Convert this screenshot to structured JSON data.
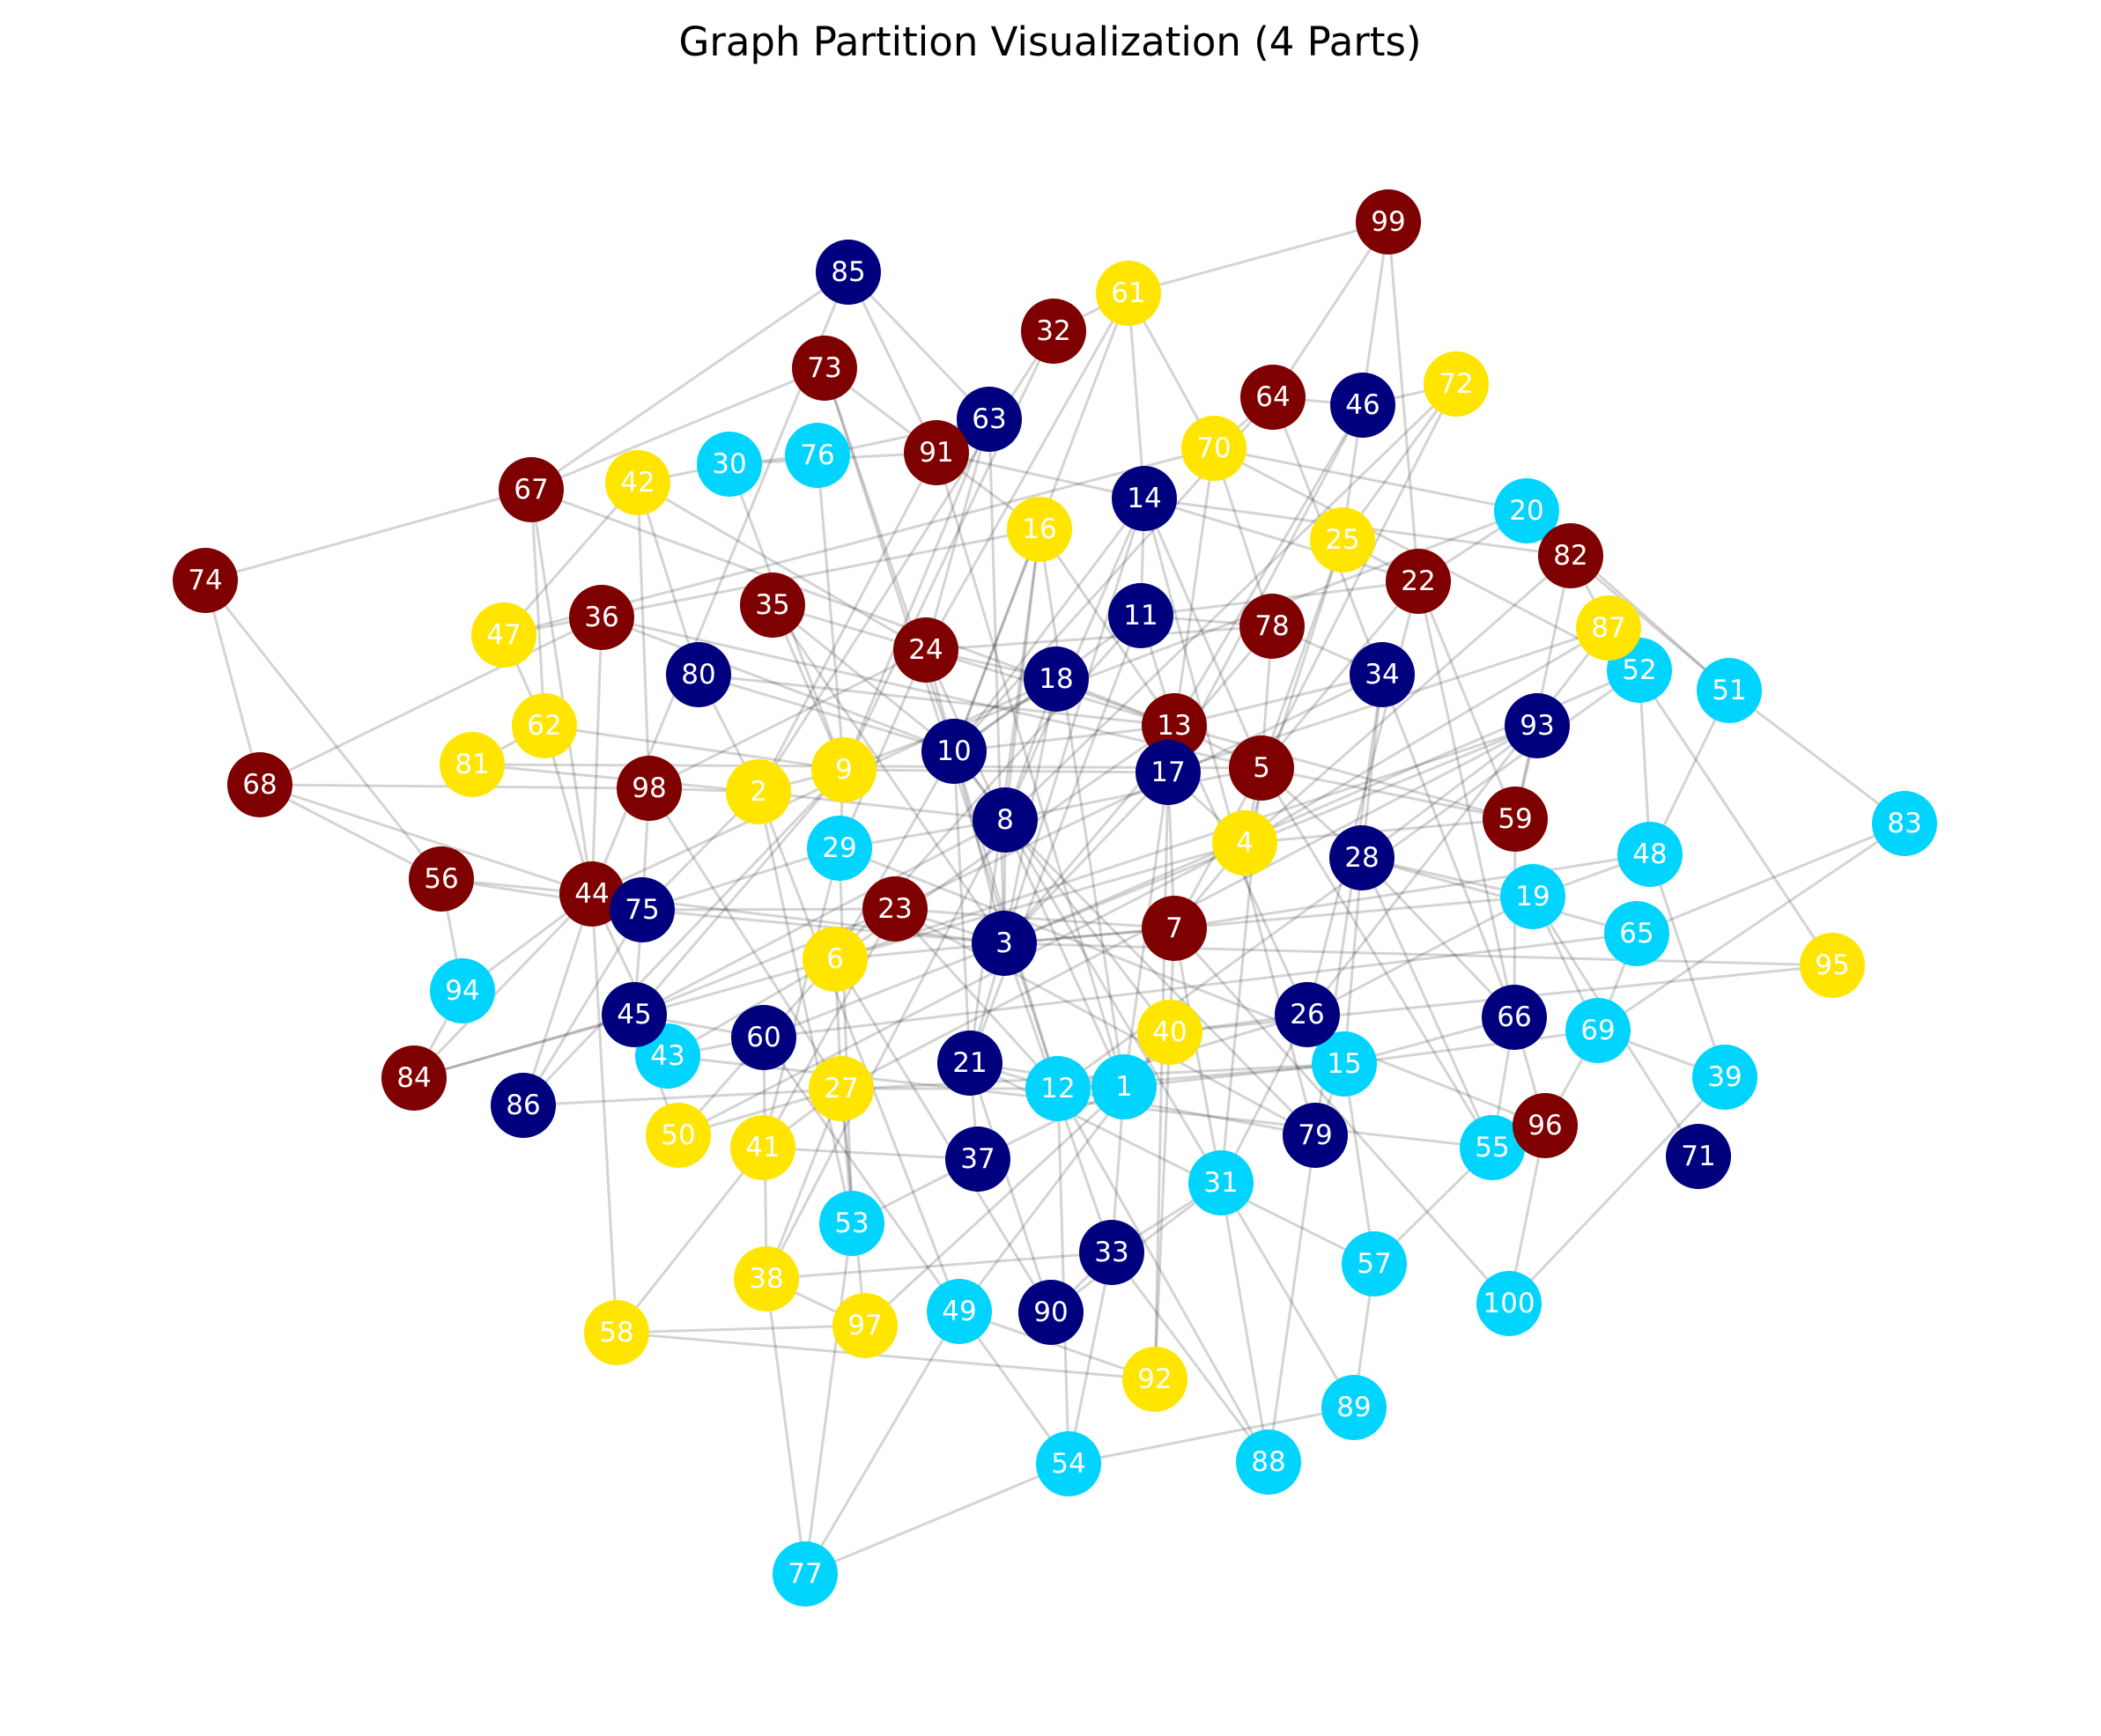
{
  "title": "Graph Partition Visualization (4 Parts)",
  "partition_colors": {
    "0": "#00007f",
    "1": "#00d4ff",
    "2": "#ffe500",
    "3": "#7f0000"
  },
  "nodes": [
    {
      "id": "1",
      "part": 1
    },
    {
      "id": "2",
      "part": 2
    },
    {
      "id": "3",
      "part": 0
    },
    {
      "id": "4",
      "part": 2
    },
    {
      "id": "5",
      "part": 3
    },
    {
      "id": "6",
      "part": 2
    },
    {
      "id": "7",
      "part": 3
    },
    {
      "id": "8",
      "part": 0
    },
    {
      "id": "9",
      "part": 2
    },
    {
      "id": "10",
      "part": 0
    },
    {
      "id": "11",
      "part": 0
    },
    {
      "id": "12",
      "part": 1
    },
    {
      "id": "13",
      "part": 3
    },
    {
      "id": "14",
      "part": 0
    },
    {
      "id": "15",
      "part": 1
    },
    {
      "id": "16",
      "part": 2
    },
    {
      "id": "17",
      "part": 0
    },
    {
      "id": "18",
      "part": 0
    },
    {
      "id": "19",
      "part": 1
    },
    {
      "id": "20",
      "part": 1
    },
    {
      "id": "21",
      "part": 0
    },
    {
      "id": "22",
      "part": 3
    },
    {
      "id": "23",
      "part": 3
    },
    {
      "id": "24",
      "part": 3
    },
    {
      "id": "25",
      "part": 2
    },
    {
      "id": "26",
      "part": 0
    },
    {
      "id": "27",
      "part": 2
    },
    {
      "id": "28",
      "part": 0
    },
    {
      "id": "29",
      "part": 1
    },
    {
      "id": "30",
      "part": 1
    },
    {
      "id": "31",
      "part": 1
    },
    {
      "id": "32",
      "part": 3
    },
    {
      "id": "33",
      "part": 0
    },
    {
      "id": "34",
      "part": 0
    },
    {
      "id": "35",
      "part": 3
    },
    {
      "id": "36",
      "part": 3
    },
    {
      "id": "37",
      "part": 0
    },
    {
      "id": "38",
      "part": 2
    },
    {
      "id": "39",
      "part": 1
    },
    {
      "id": "40",
      "part": 2
    },
    {
      "id": "41",
      "part": 2
    },
    {
      "id": "42",
      "part": 2
    },
    {
      "id": "43",
      "part": 1
    },
    {
      "id": "44",
      "part": 3
    },
    {
      "id": "45",
      "part": 0
    },
    {
      "id": "46",
      "part": 0
    },
    {
      "id": "47",
      "part": 2
    },
    {
      "id": "48",
      "part": 1
    },
    {
      "id": "49",
      "part": 1
    },
    {
      "id": "50",
      "part": 2
    },
    {
      "id": "51",
      "part": 1
    },
    {
      "id": "52",
      "part": 1
    },
    {
      "id": "53",
      "part": 1
    },
    {
      "id": "54",
      "part": 1
    },
    {
      "id": "55",
      "part": 1
    },
    {
      "id": "56",
      "part": 3
    },
    {
      "id": "57",
      "part": 1
    },
    {
      "id": "58",
      "part": 2
    },
    {
      "id": "59",
      "part": 3
    },
    {
      "id": "60",
      "part": 0
    },
    {
      "id": "61",
      "part": 2
    },
    {
      "id": "62",
      "part": 2
    },
    {
      "id": "63",
      "part": 0
    },
    {
      "id": "64",
      "part": 3
    },
    {
      "id": "65",
      "part": 1
    },
    {
      "id": "66",
      "part": 0
    },
    {
      "id": "67",
      "part": 3
    },
    {
      "id": "68",
      "part": 3
    },
    {
      "id": "69",
      "part": 1
    },
    {
      "id": "70",
      "part": 2
    },
    {
      "id": "71",
      "part": 0
    },
    {
      "id": "72",
      "part": 2
    },
    {
      "id": "73",
      "part": 3
    },
    {
      "id": "74",
      "part": 3
    },
    {
      "id": "75",
      "part": 0
    },
    {
      "id": "76",
      "part": 1
    },
    {
      "id": "77",
      "part": 1
    },
    {
      "id": "78",
      "part": 3
    },
    {
      "id": "79",
      "part": 0
    },
    {
      "id": "80",
      "part": 0
    },
    {
      "id": "81",
      "part": 2
    },
    {
      "id": "82",
      "part": 3
    },
    {
      "id": "83",
      "part": 1
    },
    {
      "id": "84",
      "part": 3
    },
    {
      "id": "85",
      "part": 0
    },
    {
      "id": "86",
      "part": 0
    },
    {
      "id": "87",
      "part": 2
    },
    {
      "id": "88",
      "part": 1
    },
    {
      "id": "89",
      "part": 1
    },
    {
      "id": "90",
      "part": 0
    },
    {
      "id": "91",
      "part": 3
    },
    {
      "id": "92",
      "part": 2
    },
    {
      "id": "93",
      "part": 0
    },
    {
      "id": "94",
      "part": 1
    },
    {
      "id": "95",
      "part": 2
    },
    {
      "id": "96",
      "part": 3
    },
    {
      "id": "97",
      "part": 2
    },
    {
      "id": "98",
      "part": 3
    },
    {
      "id": "99",
      "part": 3
    },
    {
      "id": "100",
      "part": 1
    }
  ],
  "edges": [
    [
      "74",
      "67"
    ],
    [
      "74",
      "68"
    ],
    [
      "74",
      "56"
    ],
    [
      "67",
      "73"
    ],
    [
      "67",
      "85"
    ],
    [
      "67",
      "62"
    ],
    [
      "67",
      "44"
    ],
    [
      "68",
      "98"
    ],
    [
      "68",
      "75"
    ],
    [
      "68",
      "56"
    ],
    [
      "68",
      "36"
    ],
    [
      "56",
      "44"
    ],
    [
      "56",
      "94"
    ],
    [
      "56",
      "75"
    ],
    [
      "85",
      "63"
    ],
    [
      "85",
      "91"
    ],
    [
      "73",
      "10"
    ],
    [
      "73",
      "91"
    ],
    [
      "63",
      "24"
    ],
    [
      "63",
      "9"
    ],
    [
      "32",
      "61"
    ],
    [
      "32",
      "2"
    ],
    [
      "61",
      "99"
    ],
    [
      "61",
      "14"
    ],
    [
      "61",
      "70"
    ],
    [
      "61",
      "10"
    ],
    [
      "99",
      "64"
    ],
    [
      "99",
      "22"
    ],
    [
      "64",
      "46"
    ],
    [
      "64",
      "70"
    ],
    [
      "64",
      "66"
    ],
    [
      "46",
      "72"
    ],
    [
      "46",
      "17"
    ],
    [
      "72",
      "25"
    ],
    [
      "72",
      "5"
    ],
    [
      "30",
      "91"
    ],
    [
      "30",
      "9"
    ],
    [
      "30",
      "76"
    ],
    [
      "76",
      "63"
    ],
    [
      "76",
      "9"
    ],
    [
      "42",
      "30"
    ],
    [
      "42",
      "80"
    ],
    [
      "42",
      "98"
    ],
    [
      "42",
      "47"
    ],
    [
      "42",
      "24"
    ],
    [
      "47",
      "62"
    ],
    [
      "47",
      "70"
    ],
    [
      "36",
      "44"
    ],
    [
      "36",
      "10"
    ],
    [
      "35",
      "24"
    ],
    [
      "35",
      "9"
    ],
    [
      "35",
      "3"
    ],
    [
      "80",
      "10"
    ],
    [
      "80",
      "2"
    ],
    [
      "62",
      "81"
    ],
    [
      "62",
      "44"
    ],
    [
      "62",
      "9"
    ],
    [
      "81",
      "2"
    ],
    [
      "81",
      "5"
    ],
    [
      "98",
      "75"
    ],
    [
      "98",
      "2"
    ],
    [
      "98",
      "27"
    ],
    [
      "98",
      "24"
    ],
    [
      "24",
      "18"
    ],
    [
      "24",
      "1"
    ],
    [
      "24",
      "29"
    ],
    [
      "24",
      "13"
    ],
    [
      "91",
      "16"
    ],
    [
      "91",
      "1"
    ],
    [
      "91",
      "2"
    ],
    [
      "16",
      "21"
    ],
    [
      "16",
      "10"
    ],
    [
      "16",
      "13"
    ],
    [
      "16",
      "1"
    ],
    [
      "14",
      "11"
    ],
    [
      "14",
      "10"
    ],
    [
      "14",
      "5"
    ],
    [
      "14",
      "79"
    ],
    [
      "14",
      "8"
    ],
    [
      "11",
      "10"
    ],
    [
      "11",
      "22"
    ],
    [
      "11",
      "78"
    ],
    [
      "11",
      "6"
    ],
    [
      "11",
      "13"
    ],
    [
      "18",
      "8"
    ],
    [
      "18",
      "13"
    ],
    [
      "18",
      "44"
    ],
    [
      "18",
      "3"
    ],
    [
      "10",
      "8"
    ],
    [
      "10",
      "13"
    ],
    [
      "10",
      "3"
    ],
    [
      "10",
      "6"
    ],
    [
      "10",
      "12"
    ],
    [
      "10",
      "40"
    ],
    [
      "10",
      "21"
    ],
    [
      "13",
      "17"
    ],
    [
      "13",
      "5"
    ],
    [
      "13",
      "6"
    ],
    [
      "13",
      "26"
    ],
    [
      "17",
      "7"
    ],
    [
      "17",
      "3"
    ],
    [
      "17",
      "4"
    ],
    [
      "5",
      "4"
    ],
    [
      "5",
      "22"
    ],
    [
      "5",
      "59"
    ],
    [
      "5",
      "28"
    ],
    [
      "5",
      "8"
    ],
    [
      "5",
      "7"
    ],
    [
      "5",
      "31"
    ],
    [
      "5",
      "55"
    ],
    [
      "78",
      "70"
    ],
    [
      "78",
      "5"
    ],
    [
      "78",
      "3"
    ],
    [
      "70",
      "20"
    ],
    [
      "70",
      "1"
    ],
    [
      "70",
      "52"
    ],
    [
      "25",
      "5"
    ],
    [
      "25",
      "4"
    ],
    [
      "25",
      "22"
    ],
    [
      "22",
      "20"
    ],
    [
      "22",
      "66"
    ],
    [
      "22",
      "59"
    ],
    [
      "22",
      "14"
    ],
    [
      "20",
      "82"
    ],
    [
      "20",
      "51"
    ],
    [
      "20",
      "9"
    ],
    [
      "82",
      "87"
    ],
    [
      "82",
      "51"
    ],
    [
      "82",
      "59"
    ],
    [
      "82",
      "14"
    ],
    [
      "87",
      "52"
    ],
    [
      "87",
      "4"
    ],
    [
      "87",
      "95"
    ],
    [
      "87",
      "26"
    ],
    [
      "52",
      "12"
    ],
    [
      "52",
      "48"
    ],
    [
      "51",
      "83"
    ],
    [
      "51",
      "48"
    ],
    [
      "34",
      "78"
    ],
    [
      "34",
      "79"
    ],
    [
      "34",
      "23"
    ],
    [
      "34",
      "28"
    ],
    [
      "93",
      "3"
    ],
    [
      "93",
      "28"
    ],
    [
      "93",
      "27"
    ],
    [
      "93",
      "59"
    ],
    [
      "59",
      "66"
    ],
    [
      "59",
      "4"
    ],
    [
      "28",
      "55"
    ],
    [
      "28",
      "66"
    ],
    [
      "28",
      "15"
    ],
    [
      "28",
      "19"
    ],
    [
      "19",
      "26"
    ],
    [
      "19",
      "69"
    ],
    [
      "19",
      "71"
    ],
    [
      "48",
      "19"
    ],
    [
      "48",
      "39"
    ],
    [
      "48",
      "7"
    ],
    [
      "83",
      "65"
    ],
    [
      "83",
      "69"
    ],
    [
      "65",
      "69"
    ],
    [
      "65",
      "60"
    ],
    [
      "69",
      "96"
    ],
    [
      "69",
      "15"
    ],
    [
      "69",
      "39"
    ],
    [
      "95",
      "3"
    ],
    [
      "95",
      "40"
    ],
    [
      "66",
      "96"
    ],
    [
      "66",
      "55"
    ],
    [
      "66",
      "15"
    ],
    [
      "96",
      "100"
    ],
    [
      "96",
      "29"
    ],
    [
      "55",
      "43"
    ],
    [
      "55",
      "57"
    ],
    [
      "15",
      "57"
    ],
    [
      "15",
      "1"
    ],
    [
      "15",
      "12"
    ],
    [
      "15",
      "79"
    ],
    [
      "26",
      "31"
    ],
    [
      "26",
      "12"
    ],
    [
      "26",
      "40"
    ],
    [
      "79",
      "12"
    ],
    [
      "79",
      "88"
    ],
    [
      "79",
      "8"
    ],
    [
      "79",
      "23"
    ],
    [
      "31",
      "89"
    ],
    [
      "31",
      "88"
    ],
    [
      "31",
      "33"
    ],
    [
      "31",
      "8"
    ],
    [
      "57",
      "89"
    ],
    [
      "57",
      "21"
    ],
    [
      "100",
      "39"
    ],
    [
      "100",
      "7"
    ],
    [
      "7",
      "40"
    ],
    [
      "7",
      "3"
    ],
    [
      "7",
      "23"
    ],
    [
      "7",
      "4"
    ],
    [
      "7",
      "31"
    ],
    [
      "40",
      "92"
    ],
    [
      "40",
      "49"
    ],
    [
      "40",
      "1"
    ],
    [
      "1",
      "12"
    ],
    [
      "1",
      "37"
    ],
    [
      "1",
      "33"
    ],
    [
      "1",
      "21"
    ],
    [
      "1",
      "97"
    ],
    [
      "12",
      "54"
    ],
    [
      "12",
      "88"
    ],
    [
      "12",
      "21"
    ],
    [
      "12",
      "23"
    ],
    [
      "12",
      "27"
    ],
    [
      "3",
      "6"
    ],
    [
      "3",
      "21"
    ],
    [
      "3",
      "23"
    ],
    [
      "3",
      "33"
    ],
    [
      "3",
      "8"
    ],
    [
      "3",
      "75"
    ],
    [
      "3",
      "60"
    ],
    [
      "3",
      "44"
    ],
    [
      "8",
      "29"
    ],
    [
      "8",
      "2"
    ],
    [
      "8",
      "38"
    ],
    [
      "8",
      "45"
    ],
    [
      "29",
      "9"
    ],
    [
      "29",
      "75"
    ],
    [
      "29",
      "41"
    ],
    [
      "29",
      "53"
    ],
    [
      "9",
      "2"
    ],
    [
      "9",
      "17"
    ],
    [
      "9",
      "86"
    ],
    [
      "9",
      "45"
    ],
    [
      "2",
      "53"
    ],
    [
      "2",
      "75"
    ],
    [
      "2",
      "49"
    ],
    [
      "23",
      "75"
    ],
    [
      "23",
      "45"
    ],
    [
      "23",
      "41"
    ],
    [
      "6",
      "43"
    ],
    [
      "6",
      "50"
    ],
    [
      "6",
      "90"
    ],
    [
      "6",
      "27"
    ],
    [
      "6",
      "4"
    ],
    [
      "6",
      "84"
    ],
    [
      "75",
      "45"
    ],
    [
      "75",
      "86"
    ],
    [
      "44",
      "86"
    ],
    [
      "44",
      "58"
    ],
    [
      "44",
      "84"
    ],
    [
      "44",
      "94"
    ],
    [
      "44",
      "43"
    ],
    [
      "45",
      "84"
    ],
    [
      "45",
      "50"
    ],
    [
      "45",
      "60"
    ],
    [
      "43",
      "60"
    ],
    [
      "60",
      "49"
    ],
    [
      "60",
      "38"
    ],
    [
      "27",
      "53"
    ],
    [
      "27",
      "97"
    ],
    [
      "27",
      "41"
    ],
    [
      "27",
      "50"
    ],
    [
      "27",
      "38"
    ],
    [
      "41",
      "58"
    ],
    [
      "41",
      "37"
    ],
    [
      "50",
      "4"
    ],
    [
      "21",
      "90"
    ],
    [
      "21",
      "37"
    ],
    [
      "37",
      "53"
    ],
    [
      "33",
      "54"
    ],
    [
      "33",
      "90"
    ],
    [
      "33",
      "38"
    ],
    [
      "53",
      "77"
    ],
    [
      "38",
      "77"
    ],
    [
      "38",
      "97"
    ],
    [
      "97",
      "58"
    ],
    [
      "58",
      "92"
    ],
    [
      "49",
      "92"
    ],
    [
      "49",
      "54"
    ],
    [
      "49",
      "77"
    ],
    [
      "54",
      "89"
    ],
    [
      "54",
      "77"
    ],
    [
      "88",
      "33"
    ],
    [
      "90",
      "31"
    ],
    [
      "92",
      "17"
    ],
    [
      "86",
      "15"
    ],
    [
      "94",
      "84"
    ],
    [
      "18",
      "10"
    ],
    [
      "24",
      "10"
    ],
    [
      "80",
      "13"
    ],
    [
      "35",
      "10"
    ],
    [
      "36",
      "5"
    ],
    [
      "47",
      "16"
    ],
    [
      "67",
      "13"
    ],
    [
      "85",
      "44"
    ],
    [
      "32",
      "9"
    ],
    [
      "73",
      "12"
    ],
    [
      "63",
      "3"
    ],
    [
      "91",
      "14"
    ],
    [
      "64",
      "10"
    ],
    [
      "46",
      "13"
    ],
    [
      "72",
      "8"
    ],
    [
      "61",
      "24"
    ],
    [
      "99",
      "25"
    ],
    [
      "16",
      "8"
    ],
    [
      "14",
      "3"
    ],
    [
      "11",
      "21"
    ],
    [
      "78",
      "24"
    ],
    [
      "34",
      "13"
    ],
    [
      "22",
      "26"
    ],
    [
      "93",
      "6"
    ],
    [
      "87",
      "17"
    ],
    [
      "82",
      "4"
    ],
    [
      "52",
      "3"
    ],
    [
      "59",
      "13"
    ],
    [
      "19",
      "3"
    ],
    [
      "65",
      "28"
    ]
  ]
}
